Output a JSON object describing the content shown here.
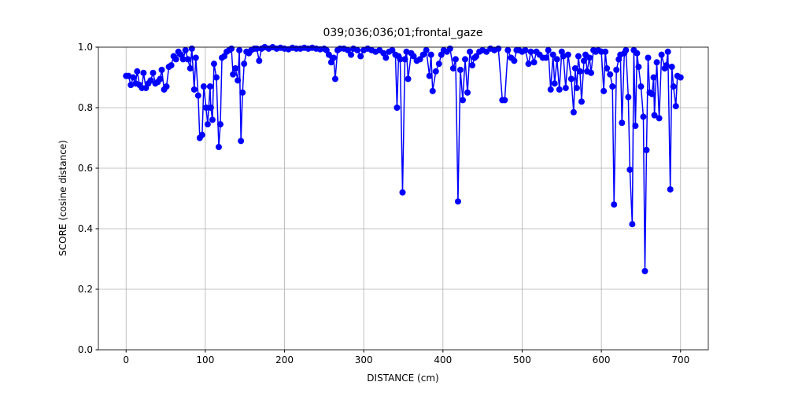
{
  "chart_data": {
    "type": "line",
    "title": "039;036;036;01;frontal_gaze",
    "x_label": "DISTANCE (cm)",
    "y_label": "SCORE (cosine distance)",
    "xlim": [
      -35,
      735
    ],
    "ylim": [
      0,
      1
    ],
    "xticks": [
      0,
      100,
      200,
      300,
      400,
      500,
      600,
      700
    ],
    "yticks": [
      {
        "value": 0,
        "label": "0.0"
      },
      {
        "value": 0.2,
        "label": "0.2"
      },
      {
        "value": 0.4,
        "label": "0.4"
      },
      {
        "value": 0.6,
        "label": "0.6"
      },
      {
        "value": 0.8,
        "label": "0.8"
      },
      {
        "value": 1,
        "label": "1.0"
      }
    ],
    "grid": true,
    "x": [
      0,
      3,
      6,
      9,
      12,
      14,
      17,
      20,
      22,
      25,
      28,
      31,
      34,
      37,
      40,
      43,
      45,
      48,
      51,
      54,
      57,
      60,
      63,
      66,
      69,
      72,
      75,
      78,
      81,
      83,
      86,
      88,
      91,
      93,
      96,
      98,
      101,
      103,
      106,
      107,
      109,
      111,
      114,
      117,
      119,
      121,
      124,
      127,
      130,
      133,
      135,
      138,
      141,
      143,
      145,
      147,
      149,
      152,
      155,
      158,
      162,
      165,
      168,
      171,
      175,
      180,
      185,
      190,
      195,
      200,
      205,
      210,
      215,
      220,
      225,
      230,
      235,
      240,
      245,
      250,
      253,
      256,
      259,
      262,
      264,
      267,
      270,
      275,
      280,
      284,
      287,
      292,
      296,
      300,
      305,
      310,
      315,
      320,
      325,
      328,
      332,
      336,
      340,
      342,
      344,
      346,
      349,
      352,
      354,
      356,
      360,
      363,
      367,
      371,
      375,
      379,
      383,
      385,
      387,
      391,
      395,
      398,
      401,
      405,
      409,
      413,
      416,
      419,
      422,
      425,
      428,
      431,
      434,
      437,
      440,
      442,
      446,
      450,
      455,
      460,
      465,
      470,
      475,
      478,
      482,
      486,
      490,
      493,
      496,
      500,
      504,
      508,
      511,
      515,
      518,
      522,
      526,
      530,
      533,
      536,
      539,
      541,
      544,
      547,
      550,
      552,
      555,
      558,
      562,
      565,
      567,
      569,
      571,
      573,
      575,
      578,
      580,
      582,
      585,
      587,
      590,
      593,
      596,
      600,
      603,
      605,
      607,
      611,
      614,
      616,
      619,
      622,
      624,
      626,
      629,
      631,
      634,
      636,
      639,
      641,
      643,
      645,
      647,
      650,
      653,
      655,
      657,
      659,
      661,
      664,
      666,
      667,
      670,
      673,
      676,
      680,
      682,
      684,
      687,
      689,
      691,
      694,
      696,
      700
    ],
    "series": [
      {
        "name": "score",
        "color": "#0000ff",
        "values": [
          0.905,
          0.905,
          0.875,
          0.9,
          0.88,
          0.92,
          0.875,
          0.865,
          0.915,
          0.865,
          0.88,
          0.89,
          0.915,
          0.88,
          0.885,
          0.895,
          0.925,
          0.86,
          0.87,
          0.935,
          0.94,
          0.97,
          0.96,
          0.985,
          0.975,
          0.96,
          0.99,
          0.96,
          0.93,
          0.995,
          0.86,
          0.965,
          0.84,
          0.7,
          0.71,
          0.87,
          0.8,
          0.745,
          0.87,
          0.8,
          0.76,
          0.945,
          0.9,
          0.67,
          0.745,
          0.965,
          0.97,
          0.985,
          0.99,
          0.995,
          0.91,
          0.93,
          0.89,
          0.99,
          0.69,
          0.85,
          0.945,
          0.985,
          0.98,
          0.99,
          0.995,
          0.995,
          0.955,
          0.995,
          1.0,
          0.995,
          1.0,
          0.995,
          0.998,
          0.995,
          0.993,
          0.998,
          0.995,
          0.995,
          0.998,
          0.995,
          0.998,
          0.995,
          0.993,
          0.995,
          0.99,
          0.975,
          0.95,
          0.965,
          0.895,
          0.99,
          0.995,
          0.995,
          0.99,
          0.975,
          0.995,
          0.99,
          0.97,
          0.99,
          0.995,
          0.99,
          0.985,
          0.99,
          0.98,
          0.965,
          0.985,
          0.99,
          0.975,
          0.8,
          0.97,
          0.96,
          0.52,
          0.96,
          0.985,
          0.895,
          0.98,
          0.97,
          0.955,
          0.96,
          0.975,
          0.99,
          0.905,
          0.975,
          0.855,
          0.92,
          0.945,
          0.975,
          0.99,
          0.985,
          0.995,
          0.93,
          0.96,
          0.49,
          0.925,
          0.825,
          0.96,
          0.85,
          0.985,
          0.94,
          0.965,
          0.97,
          0.985,
          0.99,
          0.985,
          0.995,
          0.99,
          0.995,
          0.825,
          0.825,
          0.99,
          0.965,
          0.955,
          0.99,
          0.99,
          0.985,
          0.99,
          0.945,
          0.985,
          0.95,
          0.985,
          0.975,
          0.965,
          0.965,
          0.99,
          0.86,
          0.975,
          0.88,
          0.96,
          0.86,
          0.985,
          0.97,
          0.865,
          0.975,
          0.895,
          0.785,
          0.93,
          0.865,
          0.97,
          0.92,
          0.82,
          0.955,
          0.975,
          0.92,
          0.965,
          0.915,
          0.99,
          0.985,
          0.99,
          0.985,
          0.855,
          0.985,
          0.93,
          0.91,
          0.87,
          0.48,
          0.925,
          0.96,
          0.975,
          0.75,
          0.98,
          0.99,
          0.835,
          0.595,
          0.415,
          0.99,
          0.74,
          0.98,
          0.935,
          0.87,
          0.77,
          0.26,
          0.66,
          0.965,
          0.85,
          0.845,
          0.9,
          0.775,
          0.95,
          0.765,
          0.975,
          0.93,
          0.94,
          0.985,
          0.53,
          0.935,
          0.87,
          0.805,
          0.905,
          0.9
        ]
      }
    ]
  }
}
